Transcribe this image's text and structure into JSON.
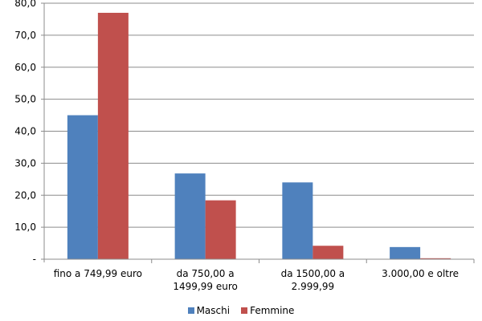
{
  "chart_data": {
    "type": "bar",
    "title": "",
    "xlabel": "",
    "ylabel": "",
    "ylim": [
      0,
      80
    ],
    "yticks": [
      "-",
      "10,0",
      "20,0",
      "30,0",
      "40,0",
      "50,0",
      "60,0",
      "70,0",
      "80,0"
    ],
    "categories": [
      [
        "fino a 749,99 euro"
      ],
      [
        "da 750,00 a",
        "1499,99 euro"
      ],
      [
        "da 1500,00 a",
        "2.999,99"
      ],
      [
        "3.000,00 e oltre"
      ]
    ],
    "series": [
      {
        "name": "Maschi",
        "color": "#4f81bd",
        "values": [
          45.0,
          26.8,
          24.0,
          3.8
        ]
      },
      {
        "name": "Femmine",
        "color": "#c0504d",
        "values": [
          77.0,
          18.4,
          4.2,
          0.3
        ]
      }
    ],
    "grid": true,
    "legend": "bottom"
  }
}
